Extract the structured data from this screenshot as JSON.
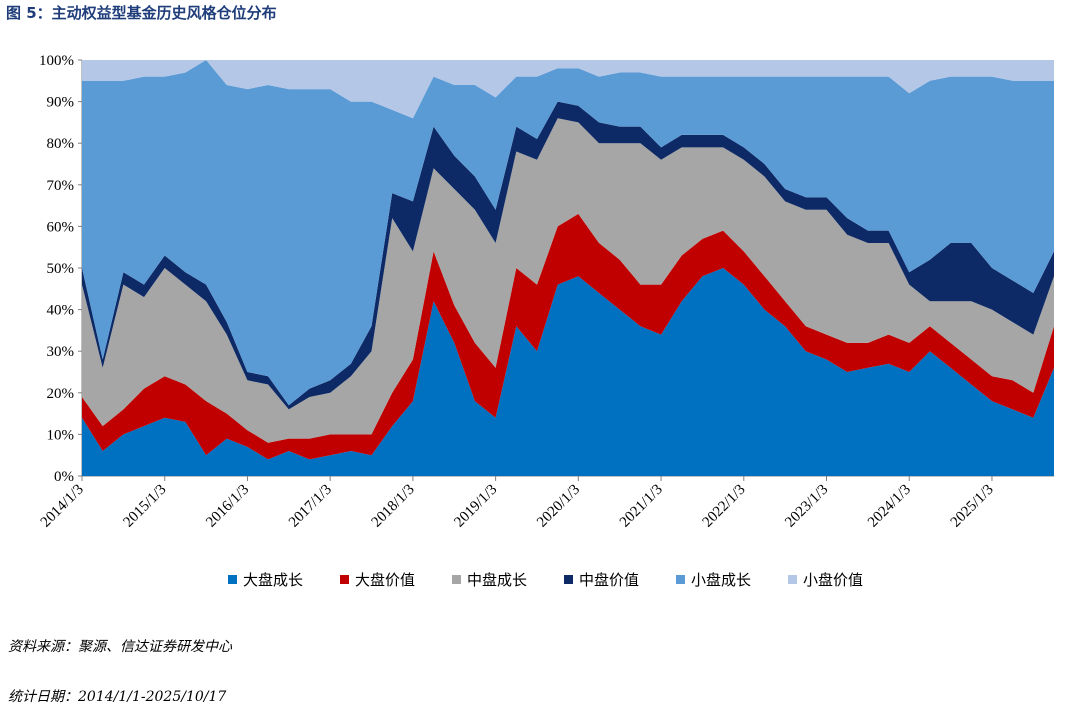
{
  "figure": {
    "title": "图 5：主动权益型基金历史风格仓位分布",
    "source_note": "资料来源：聚源、信达证券研发中心",
    "date_note": "统计日期：2014/1/1-2025/10/17"
  },
  "chart_data": {
    "type": "area",
    "stacked": true,
    "title": "",
    "xlabel": "",
    "ylabel": "",
    "ylim": [
      0,
      100
    ],
    "y_ticks": [
      "0%",
      "10%",
      "20%",
      "30%",
      "40%",
      "50%",
      "60%",
      "70%",
      "80%",
      "90%",
      "100%"
    ],
    "x_ticks": [
      "2014/1/3",
      "2015/1/3",
      "2016/1/3",
      "2017/1/3",
      "2018/1/3",
      "2019/1/3",
      "2020/1/3",
      "2021/1/3",
      "2022/1/3",
      "2023/1/3",
      "2024/1/3",
      "2025/1/3"
    ],
    "x": [
      2014.0,
      2014.25,
      2014.5,
      2014.75,
      2015.0,
      2015.25,
      2015.5,
      2015.75,
      2016.0,
      2016.25,
      2016.5,
      2016.75,
      2017.0,
      2017.25,
      2017.5,
      2017.75,
      2018.0,
      2018.25,
      2018.5,
      2018.75,
      2019.0,
      2019.25,
      2019.5,
      2019.75,
      2020.0,
      2020.25,
      2020.5,
      2020.75,
      2021.0,
      2021.25,
      2021.5,
      2021.75,
      2022.0,
      2022.25,
      2022.5,
      2022.75,
      2023.0,
      2023.25,
      2023.5,
      2023.75,
      2024.0,
      2024.25,
      2024.5,
      2024.75,
      2025.0,
      2025.25,
      2025.5,
      2025.75
    ],
    "legend_position": "bottom",
    "series": [
      {
        "name": "大盘成长",
        "color": "#0070c0",
        "values": [
          14,
          6,
          10,
          12,
          14,
          13,
          5,
          9,
          7,
          4,
          6,
          4,
          5,
          6,
          5,
          12,
          18,
          42,
          32,
          18,
          14,
          36,
          30,
          46,
          48,
          44,
          40,
          36,
          34,
          42,
          48,
          50,
          46,
          40,
          36,
          30,
          28,
          25,
          26,
          27,
          25,
          30,
          26,
          22,
          18,
          16,
          14,
          26
        ]
      },
      {
        "name": "大盘价值",
        "color": "#c00000",
        "values": [
          5,
          6,
          6,
          9,
          10,
          9,
          13,
          6,
          4,
          4,
          3,
          5,
          5,
          4,
          5,
          8,
          10,
          12,
          9,
          14,
          12,
          14,
          16,
          14,
          15,
          12,
          12,
          10,
          12,
          11,
          9,
          9,
          8,
          8,
          6,
          6,
          6,
          7,
          6,
          7,
          7,
          6,
          6,
          6,
          6,
          7,
          6,
          10
        ]
      },
      {
        "name": "中盘成长",
        "color": "#a6a6a6",
        "values": [
          27,
          14,
          30,
          22,
          26,
          24,
          24,
          19,
          12,
          14,
          7,
          10,
          10,
          14,
          20,
          42,
          26,
          20,
          28,
          32,
          30,
          28,
          30,
          26,
          22,
          24,
          28,
          34,
          30,
          26,
          22,
          20,
          22,
          24,
          24,
          28,
          30,
          26,
          24,
          22,
          14,
          6,
          10,
          14,
          16,
          14,
          14,
          12
        ]
      },
      {
        "name": "中盘价值",
        "color": "#0d2a66",
        "values": [
          4,
          2,
          3,
          3,
          3,
          3,
          4,
          3,
          2,
          2,
          1,
          2,
          3,
          3,
          6,
          6,
          12,
          10,
          8,
          8,
          8,
          6,
          5,
          4,
          4,
          5,
          4,
          4,
          3,
          3,
          3,
          3,
          3,
          3,
          3,
          3,
          3,
          4,
          3,
          3,
          3,
          10,
          14,
          14,
          10,
          10,
          10,
          6
        ]
      },
      {
        "name": "小盘成长",
        "color": "#5b9bd5",
        "values": [
          45,
          67,
          46,
          50,
          43,
          48,
          54,
          57,
          68,
          70,
          76,
          72,
          70,
          63,
          54,
          20,
          20,
          12,
          17,
          22,
          27,
          12,
          15,
          8,
          9,
          11,
          13,
          13,
          17,
          14,
          14,
          14,
          17,
          21,
          27,
          29,
          29,
          34,
          37,
          37,
          43,
          43,
          40,
          40,
          46,
          48,
          51,
          41
        ]
      },
      {
        "name": "小盘价值",
        "color": "#b4c7e7",
        "values": [
          5,
          5,
          5,
          4,
          4,
          3,
          0,
          6,
          7,
          6,
          7,
          7,
          7,
          10,
          10,
          12,
          14,
          4,
          6,
          6,
          9,
          4,
          4,
          2,
          2,
          4,
          3,
          3,
          4,
          4,
          4,
          4,
          4,
          4,
          4,
          4,
          4,
          4,
          4,
          4,
          8,
          5,
          4,
          4,
          4,
          5,
          5,
          5
        ]
      }
    ]
  }
}
